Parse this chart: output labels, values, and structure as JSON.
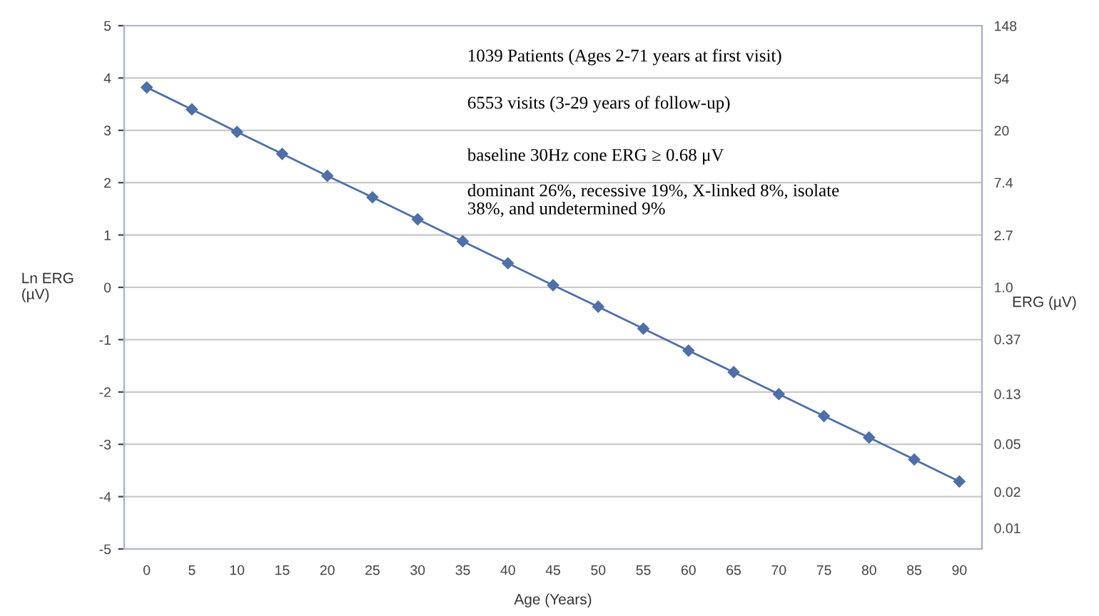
{
  "chart_data": {
    "type": "line",
    "xlabel": "Age (Years)",
    "ylabel": "Ln ERG\n(µV)",
    "y2label": "ERG (µV)",
    "categories": [
      "0",
      "5",
      "10",
      "15",
      "20",
      "25",
      "30",
      "35",
      "40",
      "45",
      "50",
      "55",
      "60",
      "65",
      "70",
      "75",
      "80",
      "85",
      "90"
    ],
    "series": [
      {
        "color": "#4f6fa8",
        "values": [
          3.82,
          3.4,
          2.97,
          2.55,
          2.13,
          1.72,
          1.3,
          0.88,
          0.46,
          0.04,
          -0.37,
          -0.79,
          -1.21,
          -1.62,
          -2.04,
          -2.46,
          -2.87,
          -3.29,
          -3.71
        ]
      }
    ],
    "ylim": [
      -5,
      5
    ],
    "yticks": [
      -5,
      -4,
      -3,
      -2,
      -1,
      0,
      1,
      2,
      3,
      4,
      5
    ],
    "y2lim": [
      0.0067,
      148.4
    ],
    "log": "y2",
    "y2ticks": [
      0.01,
      0.02,
      0.05,
      0.13,
      0.37,
      {
        "value": 1,
        "label": "1.0"
      },
      2.7,
      7.4,
      20,
      54,
      148
    ],
    "grid": "y",
    "marker": "diamond",
    "line_style": "solid",
    "annotations": [
      "1039 Patients (Ages 2-71 years at first visit)",
      "6553 visits (3-29 years of follow-up)",
      "baseline 30Hz cone ERG ≥ 0.68 μV",
      "dominant 26%, recessive 19%, X-linked 8%, isolate\n38%, and undetermined 9%"
    ]
  }
}
